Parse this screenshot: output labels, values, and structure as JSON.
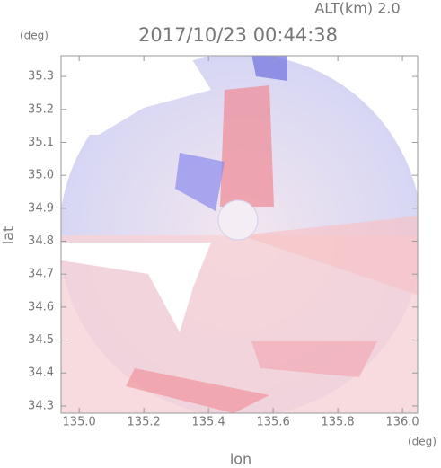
{
  "chart_data": {
    "type": "radar-image",
    "title": "2017/10/23 00:44:38",
    "subtitle": "ALT(km) 2.0",
    "x_label": "lon",
    "y_label": "lat",
    "x_unit": "(deg)",
    "y_unit": "(deg)",
    "xlim": [
      134.944,
      136.047
    ],
    "ylim": [
      34.278,
      35.363
    ],
    "xticks": [
      {
        "value": 135,
        "label": "135.0"
      },
      135.2,
      135.4,
      135.6,
      135.8,
      {
        "value": 136,
        "label": "136.0"
      }
    ],
    "yticks": [
      34.3,
      34.4,
      34.5,
      34.6,
      34.7,
      34.8,
      34.9,
      {
        "value": 35,
        "label": "35.0"
      },
      35.1,
      35.2,
      35.3
    ]
  }
}
